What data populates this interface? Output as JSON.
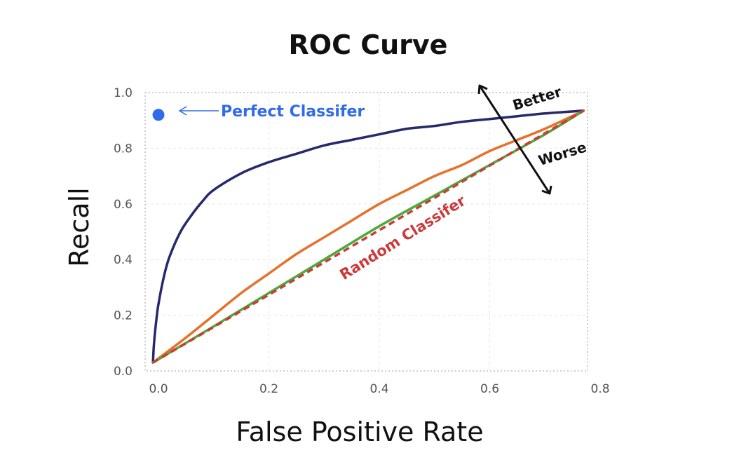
{
  "chart_data": {
    "type": "line",
    "title": "ROC Curve",
    "xlabel": "False Positive Rate",
    "ylabel": "Recall",
    "xlim": [
      0.0,
      0.8
    ],
    "ylim": [
      0.0,
      1.0
    ],
    "xticks": [
      "0.0",
      "0.2",
      "0.4",
      "0.6",
      "0.8"
    ],
    "yticks": [
      "0.0",
      "0.2",
      "0.4",
      "0.6",
      "0.8",
      "1.0"
    ],
    "grid": true,
    "series": [
      {
        "color": "#26296b",
        "x": [
          -0.01,
          -0.008,
          -0.004,
          0.0,
          0.01,
          0.02,
          0.04,
          0.06,
          0.08,
          0.1,
          0.15,
          0.2,
          0.25,
          0.3,
          0.35,
          0.4,
          0.45,
          0.5,
          0.55,
          0.6,
          0.65,
          0.7,
          0.77
        ],
        "y": [
          0.03,
          0.1,
          0.18,
          0.24,
          0.34,
          0.41,
          0.5,
          0.56,
          0.61,
          0.65,
          0.71,
          0.75,
          0.78,
          0.81,
          0.83,
          0.85,
          0.87,
          0.88,
          0.895,
          0.905,
          0.915,
          0.925,
          0.935
        ]
      },
      {
        "color": "#e6712a",
        "x": [
          -0.01,
          0.05,
          0.1,
          0.15,
          0.2,
          0.25,
          0.3,
          0.35,
          0.4,
          0.45,
          0.5,
          0.55,
          0.6,
          0.65,
          0.7,
          0.77
        ],
        "y": [
          0.03,
          0.12,
          0.2,
          0.28,
          0.35,
          0.42,
          0.48,
          0.54,
          0.6,
          0.65,
          0.7,
          0.74,
          0.79,
          0.83,
          0.87,
          0.935
        ]
      },
      {
        "color": "#4aab3a",
        "x": [
          -0.01,
          0.1,
          0.2,
          0.3,
          0.4,
          0.5,
          0.6,
          0.7,
          0.77
        ],
        "y": [
          0.03,
          0.16,
          0.28,
          0.4,
          0.52,
          0.63,
          0.74,
          0.85,
          0.935
        ]
      },
      {
        "name": "Random Classifer",
        "color": "#cc3b3b",
        "dashed": true,
        "x": [
          -0.01,
          0.77
        ],
        "y": [
          0.03,
          0.935
        ]
      }
    ],
    "points": [
      {
        "label": "Perfect Classifer",
        "x": 0.0,
        "y": 0.92,
        "color": "#2f6bea"
      }
    ],
    "annotations": {
      "perfect": "Perfect Classifer",
      "random": "Random Classifer",
      "better": "Better",
      "worse": "Worse"
    }
  }
}
